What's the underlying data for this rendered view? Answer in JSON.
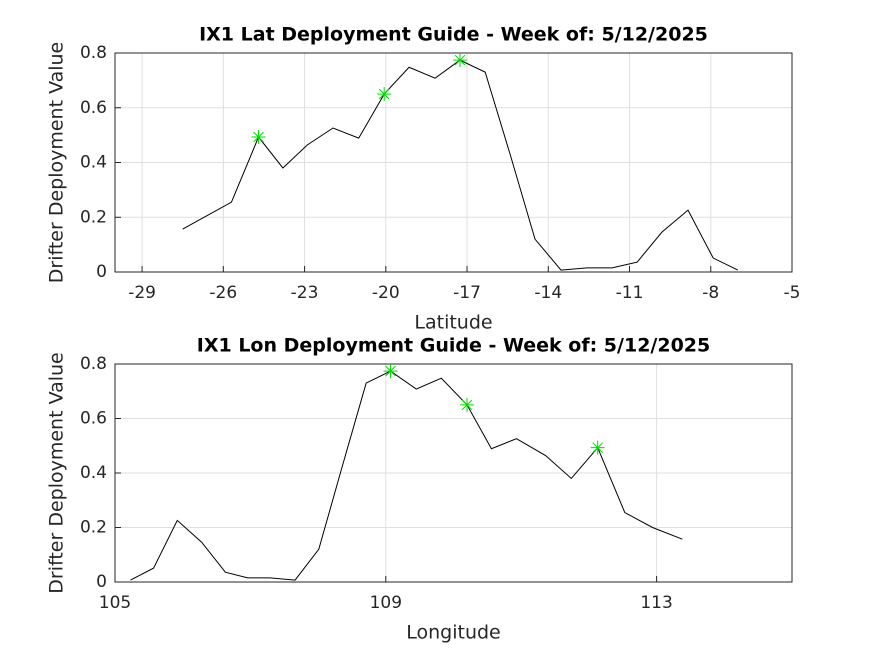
{
  "chart_data": [
    {
      "type": "line",
      "title": "IX1 Lat Deployment Guide - Week of: 5/12/2025",
      "xlabel": "Latitude",
      "ylabel": "Drifter Deployment Value",
      "xlim": [
        -30,
        -5
      ],
      "xticks": [
        -29,
        -26,
        -23,
        -20,
        -17,
        -14,
        -11,
        -8,
        -5
      ],
      "ylim": [
        0,
        0.8
      ],
      "yticks": [
        0,
        0.2,
        0.4,
        0.6,
        0.8
      ],
      "grid": true,
      "series": [
        {
          "color": "#000000",
          "x": [
            -27.5,
            -25.7,
            -24.7,
            -23.8,
            -22.9,
            -21.95,
            -21.0,
            -20.06,
            -19.14,
            -18.18,
            -17.26,
            -16.33,
            -15.4,
            -14.49,
            -13.53,
            -12.57,
            -11.64,
            -10.72,
            -9.8,
            -8.84,
            -7.91,
            -7.0
          ],
          "values": [
            0.157,
            0.255,
            0.493,
            0.38,
            0.464,
            0.526,
            0.489,
            0.65,
            0.748,
            0.708,
            0.774,
            0.73,
            0.427,
            0.12,
            0.007,
            0.015,
            0.015,
            0.036,
            0.146,
            0.226,
            0.051,
            0.007
          ]
        },
        {
          "color": "#00dd00",
          "marker": "asterisk",
          "x": [
            -24.7,
            -20.06,
            -17.26
          ],
          "values": [
            0.493,
            0.65,
            0.774
          ]
        }
      ]
    },
    {
      "type": "line",
      "title": "IX1 Lon Deployment Guide - Week of: 5/12/2025",
      "xlabel": "Longitude",
      "ylabel": "Drifter Deployment Value",
      "xlim": [
        105,
        115
      ],
      "xticks": [
        105,
        109,
        113
      ],
      "ylim": [
        0,
        0.8
      ],
      "yticks": [
        0,
        0.2,
        0.4,
        0.6,
        0.8
      ],
      "grid": true,
      "series": [
        {
          "color": "#000000",
          "x": [
            105.23,
            105.57,
            105.92,
            106.28,
            106.63,
            106.96,
            107.29,
            107.66,
            108.01,
            108.36,
            108.71,
            109.07,
            109.45,
            109.82,
            110.2,
            110.56,
            110.93,
            111.36,
            111.74,
            112.13,
            112.53,
            112.94,
            113.38
          ],
          "values": [
            0.007,
            0.051,
            0.226,
            0.146,
            0.036,
            0.015,
            0.015,
            0.007,
            0.12,
            0.427,
            0.73,
            0.774,
            0.708,
            0.748,
            0.65,
            0.489,
            0.526,
            0.464,
            0.38,
            0.493,
            0.255,
            0.2,
            0.157
          ]
        },
        {
          "color": "#00dd00",
          "marker": "asterisk",
          "x": [
            109.07,
            110.2,
            112.13
          ],
          "values": [
            0.774,
            0.65,
            0.493
          ]
        }
      ]
    }
  ]
}
